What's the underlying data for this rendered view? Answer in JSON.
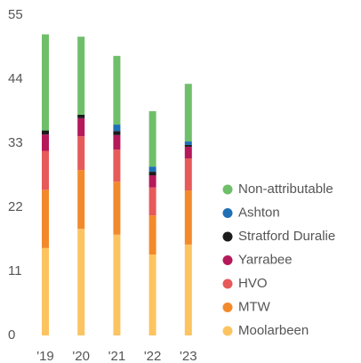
{
  "chart_data": {
    "type": "stacked_bar",
    "categories": [
      "'19",
      "'20",
      "'21",
      "'22",
      "'23"
    ],
    "ylim": [
      0,
      55
    ],
    "yticks": [
      0,
      11,
      22,
      33,
      44,
      55
    ],
    "series": [
      {
        "name": "Moolarbeen",
        "color": "#fcc461",
        "values": [
          15,
          18.3,
          17.3,
          13.9,
          15.6
        ]
      },
      {
        "name": "MTW",
        "color": "#f28a2c",
        "values": [
          10,
          10.1,
          9.1,
          6.7,
          9.3
        ]
      },
      {
        "name": "HVO",
        "color": "#e65a5a",
        "values": [
          6.7,
          5.8,
          5.5,
          4.8,
          5.5
        ]
      },
      {
        "name": "Yarrabee",
        "color": "#b5195a",
        "values": [
          2.8,
          3.1,
          2.5,
          2.1,
          2.0
        ]
      },
      {
        "name": "Stratford Duralie",
        "color": "#1c1c1c",
        "values": [
          0.7,
          0.6,
          0.7,
          0.6,
          0.3
        ]
      },
      {
        "name": "Ashton",
        "color": "#1f6fb5",
        "values": [
          0,
          0,
          1.1,
          0.9,
          0.6
        ]
      },
      {
        "name": "Non-attributable",
        "color": "#6fbf6a",
        "values": [
          16.5,
          13.4,
          11.8,
          9.5,
          9.9
        ]
      }
    ]
  }
}
